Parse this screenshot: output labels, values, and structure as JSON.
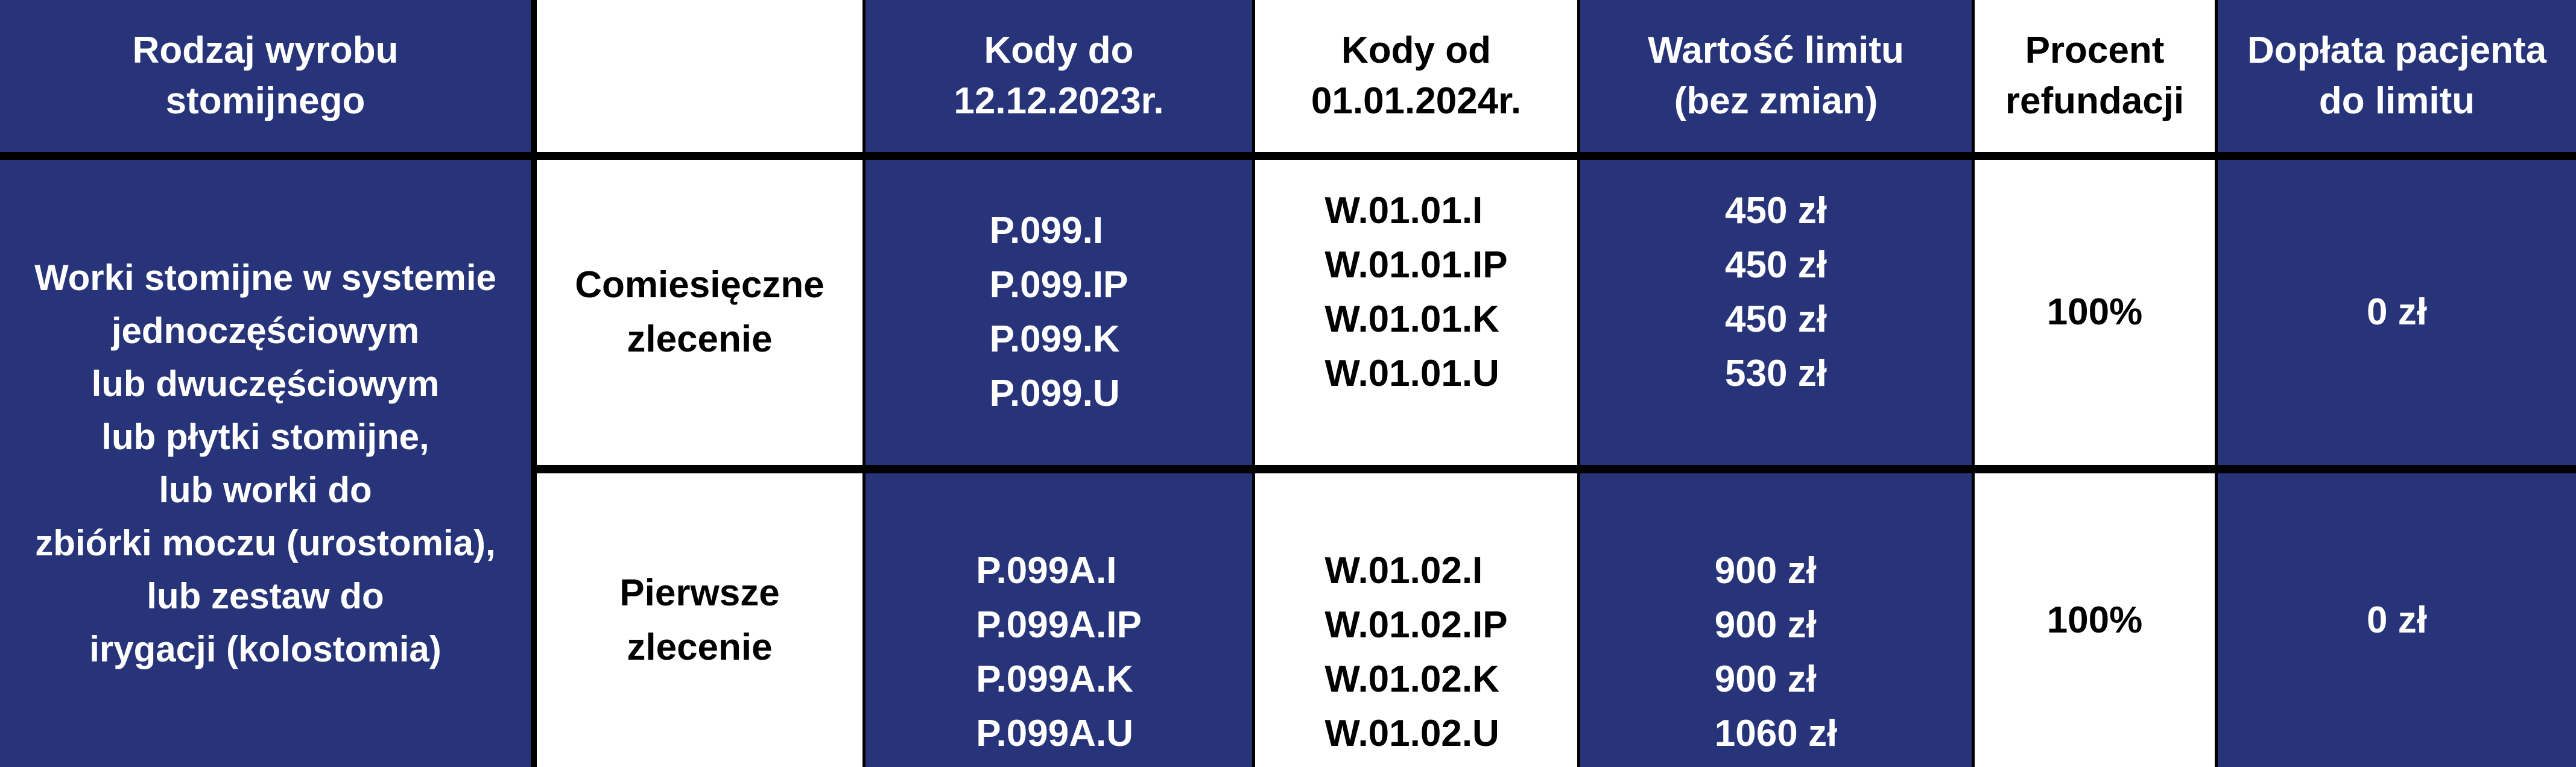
{
  "colors": {
    "navy": "#283479",
    "white": "#ffffff",
    "grid": "#000000"
  },
  "header": {
    "product_type": [
      "Rodzaj wyrobu",
      "stomijnego"
    ],
    "order_type": [],
    "codes_until": [
      "Kody do",
      "12.12.2023r."
    ],
    "codes_from": [
      "Kody od",
      "01.01.2024r."
    ],
    "limit_value": [
      "Wartość limitu",
      "(bez zmian)"
    ],
    "refund_percent": [
      "Procent",
      "refundacji"
    ],
    "patient_copay": [
      "Dopłata pacjenta",
      "do limitu"
    ]
  },
  "product_description": [
    "Worki stomijne w systemie",
    "jednoczęściowym",
    "lub dwuczęściowym",
    "lub płytki stomijne,",
    "lub worki do",
    "zbiórki moczu (urostomia),",
    "lub zestaw do",
    "irygacji (kolostomia)"
  ],
  "rows": [
    {
      "order_type": [
        "Comiesięczne",
        "zlecenie"
      ],
      "codes_until": [
        "P.099.I",
        "P.099.IP",
        "P.099.K",
        "P.099.U"
      ],
      "codes_from": [
        "W.01.01.I",
        "W.01.01.IP",
        "W.01.01.K",
        "W.01.01.U"
      ],
      "limits": [
        "450 zł",
        "450 zł",
        "450 zł",
        "530 zł"
      ],
      "refund_percent": "100%",
      "patient_copay": "0 zł"
    },
    {
      "order_type": [
        "Pierwsze",
        "zlecenie"
      ],
      "codes_until": [
        "P.099A.I",
        "P.099A.IP",
        "P.099A.K",
        "P.099A.U"
      ],
      "codes_from": [
        "W.01.02.I",
        "W.01.02.IP",
        "W.01.02.K",
        "W.01.02.U"
      ],
      "limits": [
        "900 zł",
        "900 zł",
        "900 zł",
        "1060 zł"
      ],
      "refund_percent": "100%",
      "patient_copay": "0 zł"
    }
  ]
}
